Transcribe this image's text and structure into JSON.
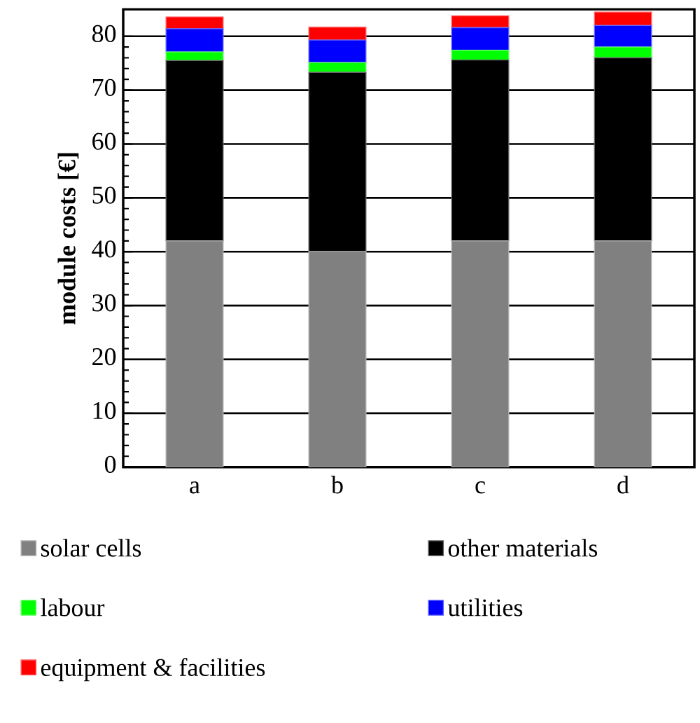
{
  "chart_data": {
    "type": "bar",
    "stacked": true,
    "ylabel": "module costs [€]",
    "categories": [
      "a",
      "b",
      "c",
      "d"
    ],
    "series": [
      {
        "name": "solar cells",
        "color": "#808080",
        "values": [
          42,
          40,
          42,
          42
        ]
      },
      {
        "name": "other materials",
        "color": "#000000",
        "values": [
          33.5,
          33.3,
          33.6,
          34
        ]
      },
      {
        "name": "labour",
        "color": "#00ff00",
        "values": [
          1.6,
          1.8,
          1.8,
          2
        ]
      },
      {
        "name": "utilities",
        "color": "#0000ff",
        "values": [
          4.3,
          4.2,
          4.2,
          4
        ]
      },
      {
        "name": "equipment & facilities",
        "color": "#ff0000",
        "values": [
          2.2,
          2.4,
          2.2,
          2.5
        ]
      }
    ],
    "ylim": [
      0,
      85
    ],
    "yticks": [
      0,
      10,
      20,
      30,
      40,
      50,
      60,
      70,
      80
    ],
    "grid": "y",
    "legend": "bottom"
  }
}
